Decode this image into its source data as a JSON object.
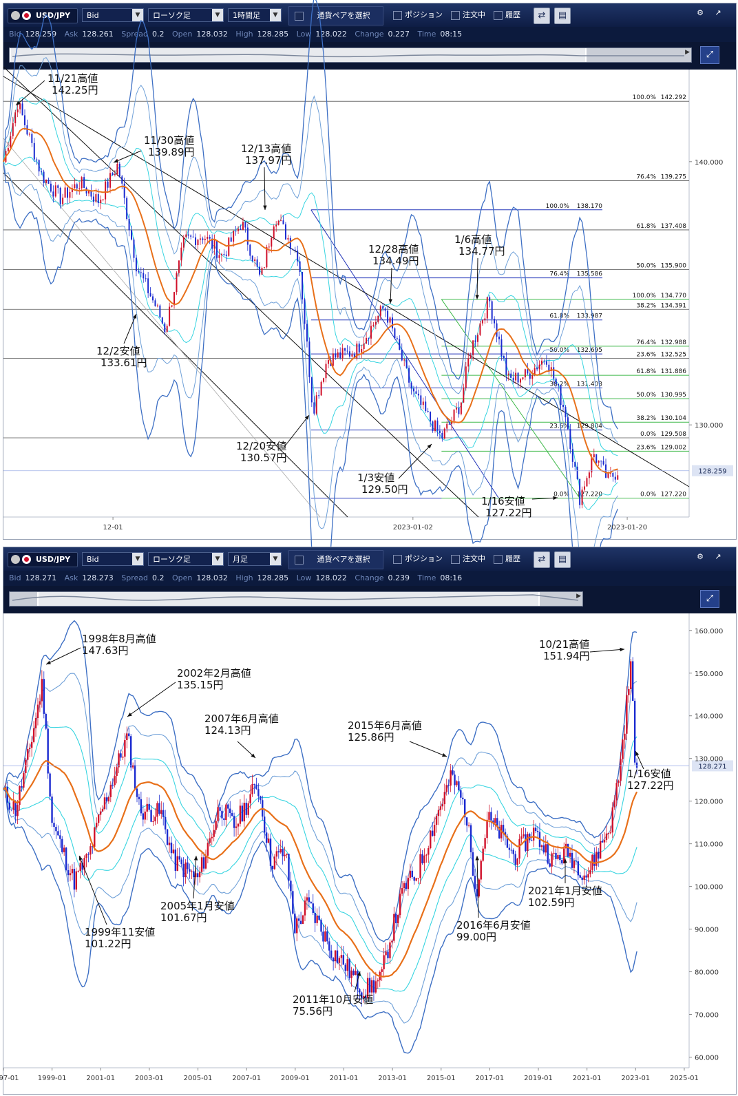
{
  "panels": [
    {
      "toolbar": {
        "pair": "USD/JPY",
        "price_type": "Bid",
        "chart_type": "ローソク足",
        "timeframe": "1時間足",
        "select_pair": "通貨ペアを選択",
        "position": "ポジション",
        "orders": "注文中",
        "history": "履歴"
      },
      "info": {
        "bid_label": "Bid",
        "bid": "128.259",
        "ask_label": "Ask",
        "ask": "128.261",
        "spread_label": "Spread",
        "spread": "0.2",
        "open_label": "Open",
        "open": "128.032",
        "high_label": "High",
        "high": "128.285",
        "low_label": "Low",
        "low": "128.022",
        "change_label": "Change",
        "change": "0.227",
        "time_label": "Time",
        "time": "08:15"
      }
    },
    {
      "toolbar": {
        "pair": "USD/JPY",
        "price_type": "Bid",
        "chart_type": "ローソク足",
        "timeframe": "月足",
        "select_pair": "通貨ペアを選択",
        "position": "ポジション",
        "orders": "注文中",
        "history": "履歴"
      },
      "info": {
        "bid_label": "Bid",
        "bid": "128.271",
        "ask_label": "Ask",
        "ask": "128.273",
        "spread_label": "Spread",
        "spread": "0.2",
        "open_label": "Open",
        "open": "128.032",
        "high_label": "High",
        "high": "128.285",
        "low_label": "Low",
        "low": "128.022",
        "change_label": "Change",
        "change": "0.239",
        "time_label": "Time",
        "time": "08:16"
      }
    }
  ],
  "colors": {
    "toolbar": "#13275a",
    "mid_line": "#e8701a",
    "band_outer": "#3d6fc4",
    "band_mid": "#6fa0d8",
    "band_inner": "#36d4e0",
    "candle_up": "#d0102a",
    "candle_down": "#1a2ad0",
    "fib_blue": "#2033b8",
    "fib_green": "#3fb94a",
    "trendline": "#111111",
    "current_price_line": "#9fb0e8"
  },
  "chart_data": [
    {
      "type": "candlestick",
      "instrument": "USD/JPY",
      "timeframe": "1時間足",
      "x_ticks": [
        "12-01",
        "2023-01-02",
        "2023-01-20"
      ],
      "y_ticks": [
        140.0,
        130.0
      ],
      "ylim": [
        126.5,
        143.5
      ],
      "current_price": "128.259",
      "approx_path": [
        {
          "x": 0.0,
          "y": 140.0
        },
        {
          "x": 1.5,
          "y": 142.25
        },
        {
          "x": 4,
          "y": 139.5
        },
        {
          "x": 6,
          "y": 138.6
        },
        {
          "x": 8,
          "y": 139.2
        },
        {
          "x": 10,
          "y": 138.5
        },
        {
          "x": 12,
          "y": 139.89
        },
        {
          "x": 14,
          "y": 136.0
        },
        {
          "x": 16,
          "y": 134.5
        },
        {
          "x": 17,
          "y": 133.61
        },
        {
          "x": 19,
          "y": 137.0
        },
        {
          "x": 21,
          "y": 137.2
        },
        {
          "x": 23,
          "y": 136.4
        },
        {
          "x": 25,
          "y": 137.7
        },
        {
          "x": 27,
          "y": 135.5
        },
        {
          "x": 28.5,
          "y": 137.97
        },
        {
          "x": 31,
          "y": 136.4
        },
        {
          "x": 32.5,
          "y": 130.57
        },
        {
          "x": 34,
          "y": 132.5
        },
        {
          "x": 37,
          "y": 132.8
        },
        {
          "x": 40,
          "y": 134.49
        },
        {
          "x": 43,
          "y": 131.2
        },
        {
          "x": 46,
          "y": 129.5
        },
        {
          "x": 48,
          "y": 130.8
        },
        {
          "x": 49,
          "y": 132.8
        },
        {
          "x": 51,
          "y": 134.77
        },
        {
          "x": 53,
          "y": 131.7
        },
        {
          "x": 55,
          "y": 131.9
        },
        {
          "x": 57,
          "y": 132.6
        },
        {
          "x": 59,
          "y": 130.5
        },
        {
          "x": 60.5,
          "y": 127.22
        },
        {
          "x": 62,
          "y": 128.9
        },
        {
          "x": 63.5,
          "y": 127.9
        },
        {
          "x": 64.5,
          "y": 128.26
        }
      ],
      "fib_levels_gray": [
        {
          "pct": "100.0%",
          "value": "142.292"
        },
        {
          "pct": "76.4%",
          "value": "139.275"
        },
        {
          "pct": "61.8%",
          "value": "137.408"
        },
        {
          "pct": "50.0%",
          "value": "135.900"
        },
        {
          "pct": "38.2%",
          "value": "134.391"
        },
        {
          "pct": "23.6%",
          "value": "132.525"
        },
        {
          "pct": "0.0%",
          "value": "129.508"
        }
      ],
      "fib_levels_blue": [
        {
          "pct": "100.0%",
          "value": "138.170"
        },
        {
          "pct": "76.4%",
          "value": "135.586"
        },
        {
          "pct": "61.8%",
          "value": "133.987"
        },
        {
          "pct": "50.0%",
          "value": "132.695"
        },
        {
          "pct": "38.2%",
          "value": "131.403"
        },
        {
          "pct": "23.6%",
          "value": "129.804"
        },
        {
          "pct": "0.0%",
          "value": "127.220"
        }
      ],
      "fib_levels_green": [
        {
          "pct": "100.0%",
          "value": "134.770"
        },
        {
          "pct": "76.4%",
          "value": "132.988"
        },
        {
          "pct": "61.8%",
          "value": "131.886"
        },
        {
          "pct": "50.0%",
          "value": "130.995"
        },
        {
          "pct": "38.2%",
          "value": "130.104"
        },
        {
          "pct": "23.6%",
          "value": "129.002"
        },
        {
          "pct": "0.0%",
          "value": "127.220"
        }
      ],
      "annotations": [
        {
          "l1": "11/21高値",
          "l2": "142.25円"
        },
        {
          "l1": "11/30高値",
          "l2": "139.89円"
        },
        {
          "l1": "12/13高値",
          "l2": "137.97円"
        },
        {
          "l1": "12/2安値",
          "l2": "133.61円"
        },
        {
          "l1": "12/28高値",
          "l2": "134.49円"
        },
        {
          "l1": "1/6高値",
          "l2": "134.77円"
        },
        {
          "l1": "12/20安値",
          "l2": "130.57円"
        },
        {
          "l1": "1/3安値",
          "l2": "129.50円"
        },
        {
          "l1": "1/16安値",
          "l2": "127.22円"
        }
      ]
    },
    {
      "type": "candlestick",
      "instrument": "USD/JPY",
      "timeframe": "月足",
      "x_ticks": [
        "97-01",
        "1999-01",
        "2001-01",
        "2003-01",
        "2005-01",
        "2007-01",
        "2009-01",
        "2011-01",
        "2013-01",
        "2015-01",
        "2017-01",
        "2019-01",
        "2021-01",
        "2023-01",
        "2025-01"
      ],
      "y_ticks": [
        160.0,
        150.0,
        140.0,
        130.0,
        120.0,
        110.0,
        100.0,
        90.0,
        80.0,
        70.0,
        60.0
      ],
      "ylim": [
        57.5,
        164
      ],
      "current_price": "128.271",
      "approx_path": [
        {
          "x": 1997.0,
          "y": 122
        },
        {
          "x": 1997.5,
          "y": 118
        },
        {
          "x": 1998.0,
          "y": 130
        },
        {
          "x": 1998.6,
          "y": 147.63
        },
        {
          "x": 1999.0,
          "y": 115
        },
        {
          "x": 1999.9,
          "y": 101.22
        },
        {
          "x": 2000.5,
          "y": 107
        },
        {
          "x": 2001.0,
          "y": 117
        },
        {
          "x": 2002.1,
          "y": 135.15
        },
        {
          "x": 2002.6,
          "y": 118
        },
        {
          "x": 2003.5,
          "y": 117
        },
        {
          "x": 2004.0,
          "y": 106
        },
        {
          "x": 2005.0,
          "y": 101.67
        },
        {
          "x": 2005.9,
          "y": 119
        },
        {
          "x": 2006.5,
          "y": 114
        },
        {
          "x": 2007.45,
          "y": 124.13
        },
        {
          "x": 2008.0,
          "y": 106
        },
        {
          "x": 2008.6,
          "y": 108
        },
        {
          "x": 2009.0,
          "y": 90
        },
        {
          "x": 2009.5,
          "y": 96
        },
        {
          "x": 2010.0,
          "y": 91
        },
        {
          "x": 2010.5,
          "y": 85
        },
        {
          "x": 2011.0,
          "y": 82
        },
        {
          "x": 2011.8,
          "y": 75.56
        },
        {
          "x": 2012.5,
          "y": 78
        },
        {
          "x": 2013.0,
          "y": 90
        },
        {
          "x": 2013.5,
          "y": 100
        },
        {
          "x": 2014.0,
          "y": 103
        },
        {
          "x": 2014.9,
          "y": 118
        },
        {
          "x": 2015.45,
          "y": 125.86
        },
        {
          "x": 2016.0,
          "y": 118
        },
        {
          "x": 2016.45,
          "y": 99.0
        },
        {
          "x": 2016.9,
          "y": 116
        },
        {
          "x": 2017.5,
          "y": 112
        },
        {
          "x": 2018.0,
          "y": 107
        },
        {
          "x": 2018.8,
          "y": 113
        },
        {
          "x": 2019.6,
          "y": 106
        },
        {
          "x": 2020.2,
          "y": 108
        },
        {
          "x": 2021.0,
          "y": 102.59
        },
        {
          "x": 2021.6,
          "y": 110
        },
        {
          "x": 2022.0,
          "y": 115
        },
        {
          "x": 2022.4,
          "y": 130
        },
        {
          "x": 2022.8,
          "y": 151.94
        },
        {
          "x": 2023.0,
          "y": 127.22
        }
      ],
      "annotations": [
        {
          "l1": "1998年8月高値",
          "l2": "147.63円"
        },
        {
          "l1": "2002年2月高値",
          "l2": "135.15円"
        },
        {
          "l1": "2007年6月高値",
          "l2": "124.13円"
        },
        {
          "l1": "2015年6月高値",
          "l2": "125.86円"
        },
        {
          "l1": "10/21高値",
          "l2": "151.94円"
        },
        {
          "l1": "1/16安値",
          "l2": "127.22円"
        },
        {
          "l1": "1999年11安値",
          "l2": "101.22円"
        },
        {
          "l1": "2005年1月安値",
          "l2": "101.67円"
        },
        {
          "l1": "2011年10月安値",
          "l2": "75.56円"
        },
        {
          "l1": "2016年6月安値",
          "l2": "99.00円"
        },
        {
          "l1": "2021年1月安値",
          "l2": "102.59円"
        }
      ]
    }
  ]
}
